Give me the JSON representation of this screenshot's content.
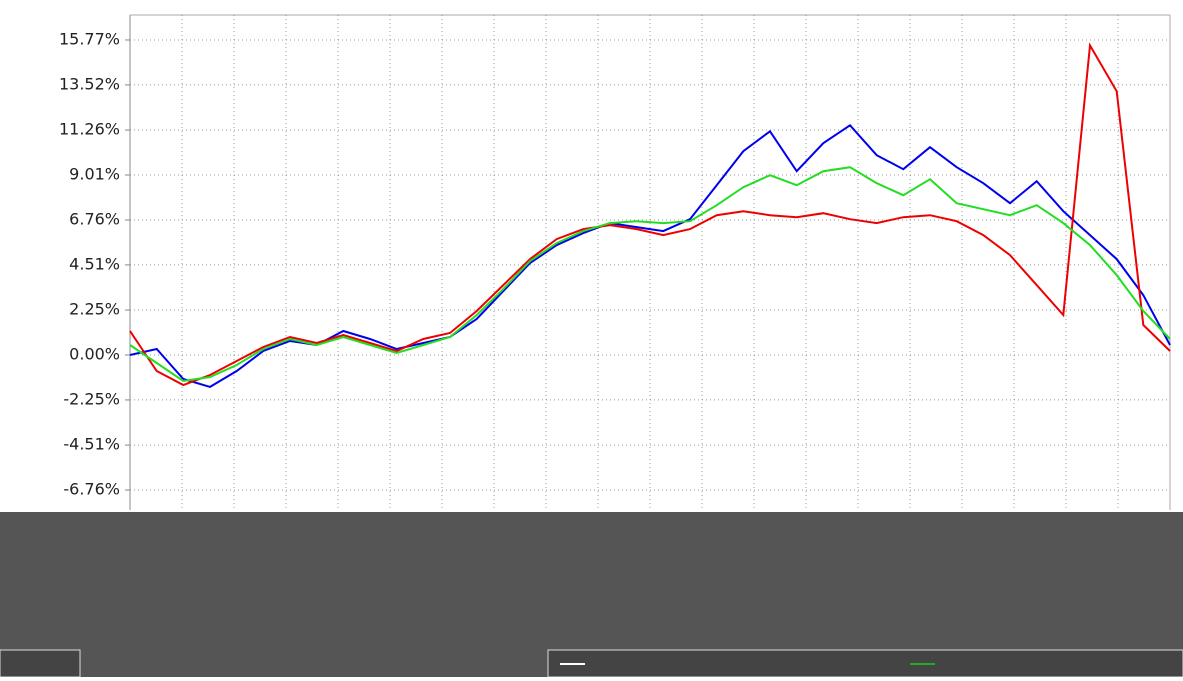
{
  "chart_data": {
    "type": "line",
    "ylim": [
      -7.76,
      17.02
    ],
    "yticks": [
      {
        "value": 15.77,
        "label": "15.77%"
      },
      {
        "value": 13.52,
        "label": "13.52%"
      },
      {
        "value": 11.26,
        "label": "11.26%"
      },
      {
        "value": 9.01,
        "label": "9.01%"
      },
      {
        "value": 6.76,
        "label": "6.76%"
      },
      {
        "value": 4.51,
        "label": "4.51%"
      },
      {
        "value": 2.25,
        "label": "2.25%"
      },
      {
        "value": 0,
        "label": "0.00%"
      },
      {
        "value": -2.25,
        "label": "-2.25%"
      },
      {
        "value": -4.51,
        "label": "-4.51%"
      },
      {
        "value": -6.76,
        "label": "-6.76%"
      }
    ],
    "grid": true,
    "series": [
      {
        "color": "#0000ee",
        "values": [
          0,
          0.3,
          -1.2,
          -1.6,
          -0.8,
          0.2,
          0.7,
          0.5,
          1.2,
          0.8,
          0.3,
          0.6,
          0.9,
          1.8,
          3.2,
          4.6,
          5.5,
          6.1,
          6.6,
          6.4,
          6.2,
          6.8,
          8.5,
          10.2,
          11.2,
          9.2,
          10.6,
          11.5,
          10.0,
          9.3,
          10.4,
          9.4,
          8.6,
          7.6,
          8.7,
          7.2,
          6.0,
          4.8,
          3.0,
          0.5
        ]
      },
      {
        "color": "#ee0000",
        "values": [
          1.2,
          -0.8,
          -1.5,
          -1.0,
          -0.3,
          0.4,
          0.9,
          0.6,
          1.0,
          0.6,
          0.2,
          0.8,
          1.1,
          2.2,
          3.5,
          4.8,
          5.8,
          6.3,
          6.5,
          6.3,
          6.0,
          6.3,
          7.0,
          7.2,
          7.0,
          6.9,
          7.1,
          6.8,
          6.6,
          6.9,
          7.0,
          6.7,
          6.0,
          5.0,
          3.5,
          2.0,
          15.5,
          13.2,
          1.5,
          0.2
        ]
      },
      {
        "color": "#22dd22",
        "values": [
          0.5,
          -0.4,
          -1.3,
          -1.1,
          -0.5,
          0.3,
          0.8,
          0.5,
          0.9,
          0.5,
          0.1,
          0.5,
          0.9,
          2.0,
          3.3,
          4.7,
          5.6,
          6.2,
          6.6,
          6.7,
          6.6,
          6.7,
          7.5,
          8.4,
          9.0,
          8.5,
          9.2,
          9.4,
          8.6,
          8.0,
          8.8,
          7.6,
          7.3,
          7.0,
          7.5,
          6.6,
          5.5,
          4.0,
          2.2,
          0.8
        ]
      }
    ]
  }
}
